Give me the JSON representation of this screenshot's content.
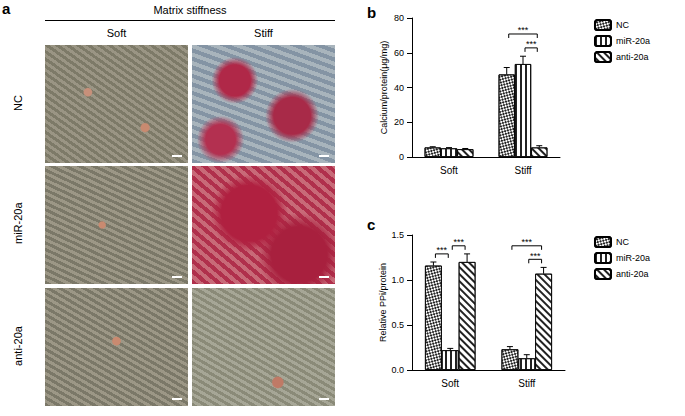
{
  "panel_a": {
    "label": "a",
    "title": "Matrix stiffness",
    "columns": [
      "Soft",
      "Stiff"
    ],
    "rows": [
      "NC",
      "miR-20a",
      "anti-20a"
    ]
  },
  "chart_data": [
    {
      "type": "bar",
      "title": "b",
      "y_label": "Calcium/protein(μg/mg)",
      "categories": [
        "Soft",
        "Stiff"
      ],
      "series": [
        {
          "name": "NC",
          "color": "#ffffff",
          "values": [
            5.5,
            47.5
          ],
          "errors": [
            0.4,
            4.0
          ]
        },
        {
          "name": "miR-20a",
          "color": "#ffffff",
          "values": [
            5.0,
            53.5
          ],
          "errors": [
            0.4,
            4.5
          ]
        },
        {
          "name": "anti-20a",
          "color": "#ffffff",
          "values": [
            4.5,
            5.5
          ],
          "errors": [
            0.4,
            1.0
          ]
        }
      ],
      "ylim": [
        0,
        80
      ],
      "yticks": [
        0,
        20,
        40,
        60,
        80
      ],
      "grid": false,
      "legend": "right",
      "significance": [
        {
          "category": "Stiff",
          "from": "NC",
          "to": "anti-20a",
          "label": "***"
        },
        {
          "category": "Stiff",
          "from": "miR-20a",
          "to": "anti-20a",
          "label": "***"
        }
      ]
    },
    {
      "type": "bar",
      "title": "c",
      "y_label": "Relative PPi/protein",
      "categories": [
        "Soft",
        "Stiff"
      ],
      "series": [
        {
          "name": "NC",
          "color": "#ffffff",
          "values": [
            1.16,
            0.23
          ],
          "errors": [
            0.04,
            0.03
          ]
        },
        {
          "name": "miR-20a",
          "color": "#ffffff",
          "values": [
            0.22,
            0.13
          ],
          "errors": [
            0.02,
            0.04
          ]
        },
        {
          "name": "anti-20a",
          "color": "#ffffff",
          "values": [
            1.2,
            1.07
          ],
          "errors": [
            0.09,
            0.07
          ]
        }
      ],
      "ylim": [
        0,
        1.5
      ],
      "yticks": [
        {
          "value": 0,
          "label": "0.0"
        },
        {
          "value": 0.5,
          "label": "0.5"
        },
        {
          "value": 1,
          "label": "1.0"
        },
        {
          "value": 1.5,
          "label": "1.5"
        }
      ],
      "grid": false,
      "legend": "right",
      "significance": [
        {
          "category": "Soft",
          "from": "NC",
          "to": "miR-20a",
          "label": "***"
        },
        {
          "category": "Soft",
          "from": "miR-20a",
          "to": "anti-20a",
          "label": "***"
        },
        {
          "category": "Stiff",
          "from": "NC",
          "to": "anti-20a",
          "label": "***"
        },
        {
          "category": "Stiff",
          "from": "miR-20a",
          "to": "anti-20a",
          "label": "***"
        }
      ]
    }
  ]
}
